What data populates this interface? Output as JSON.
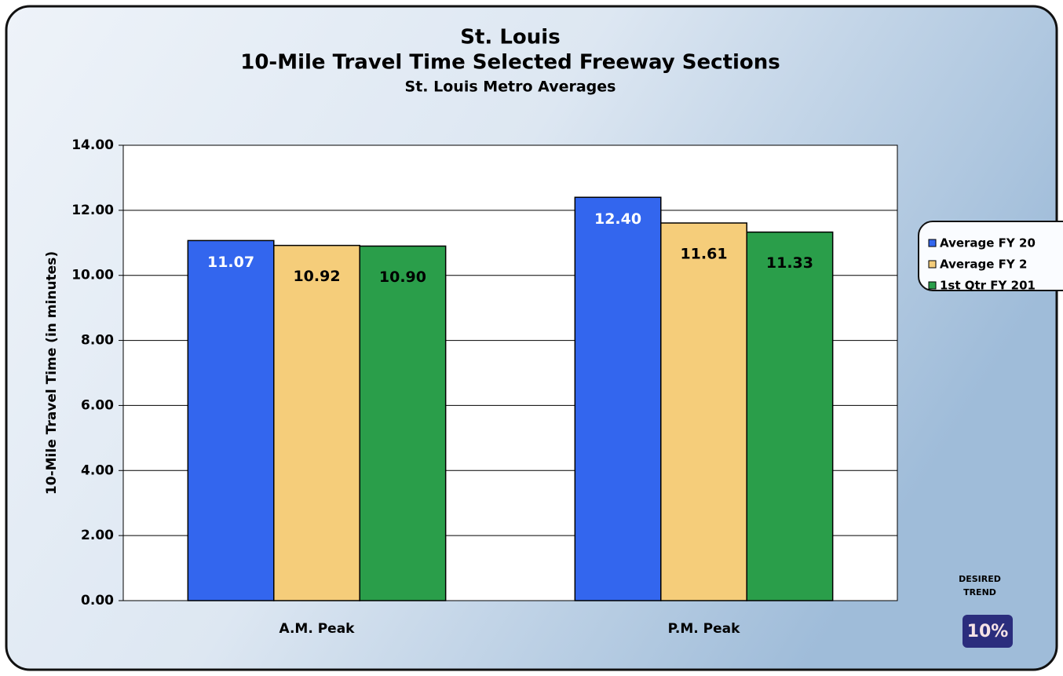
{
  "chart_data": {
    "type": "bar",
    "title": [
      "St. Louis",
      "10-Mile Travel Time Selected Freeway Sections"
    ],
    "subtitle": "St. Louis Metro Averages",
    "y_label": "10-Mile Travel Time (in minutes)",
    "categories": [
      "A.M. Peak",
      "P.M. Peak"
    ],
    "series": [
      {
        "name": "Average FY 20",
        "color": "#3366ee",
        "values": [
          11.07,
          12.4
        ],
        "value_labels": [
          "11.07",
          "12.40"
        ]
      },
      {
        "name": "Average FY 2",
        "color": "#f5cd7a",
        "values": [
          10.92,
          11.61
        ],
        "value_labels": [
          "10.92",
          "11.61"
        ]
      },
      {
        "name": "1st Qtr FY 201",
        "color": "#2a9e4a",
        "values": [
          10.9,
          11.33
        ],
        "value_labels": [
          "10.90",
          "11.33"
        ]
      }
    ],
    "ylim": [
      0,
      14
    ],
    "yticks": [
      {
        "value": 0,
        "label": "0.00"
      },
      {
        "value": 2,
        "label": "2.00"
      },
      {
        "value": 4,
        "label": "4.00"
      },
      {
        "value": 6,
        "label": "6.00"
      },
      {
        "value": 8,
        "label": "8.00"
      },
      {
        "value": 10,
        "label": "10.00"
      },
      {
        "value": 12,
        "label": "12.00"
      },
      {
        "value": 14,
        "label": "14.00"
      }
    ],
    "grid": true,
    "legend": "right",
    "annotations": {
      "desired": "DESIRED",
      "trend": "TREND",
      "badge": "10%"
    }
  }
}
